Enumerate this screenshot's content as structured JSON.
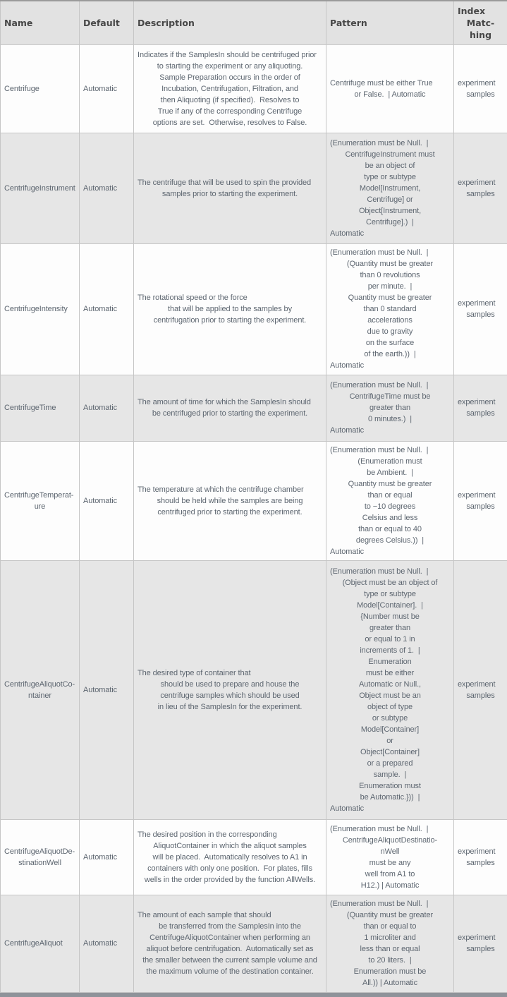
{
  "colors": {
    "header_bg": "#e2e2e2",
    "alt_row_bg": "#e6e6e6",
    "row_bg": "#fdfdfd",
    "grid_border": "#c6c6c6",
    "outer_border": "#9a9a9a",
    "body_text": "#5d6670",
    "header_text": "#474747",
    "bottom_bar": "#8f939a"
  },
  "table": {
    "columns": [
      {
        "key": "name",
        "label_lines": [
          "Name"
        ]
      },
      {
        "key": "default",
        "label_lines": [
          "Default"
        ]
      },
      {
        "key": "description",
        "label_lines": [
          "Description"
        ]
      },
      {
        "key": "pattern",
        "label_lines": [
          "Pattern"
        ]
      },
      {
        "key": "index_matching",
        "label_lines": [
          "Index",
          "Matc-",
          "hing"
        ]
      }
    ],
    "rows": [
      {
        "name": [
          "Centrifuge"
        ],
        "default": [
          "Automatic"
        ],
        "description": [
          "Indicates if the SamplesIn should be centrifuged prior",
          "to starting the experiment or any aliquoting.",
          "Sample Preparation occurs in the order of",
          "Incubation, Centrifugation, Filtration, and",
          "then Aliquoting (if specified).  Resolves to",
          "True if any of the corresponding Centrifuge",
          "options are set.  Otherwise, resolves to False."
        ],
        "pattern": [
          "Centrifuge must be either True",
          "or False.  | Automatic"
        ],
        "index_matching": [
          "experiment",
          "samples"
        ]
      },
      {
        "name": [
          "CentrifugeInstrument"
        ],
        "default": [
          "Automatic"
        ],
        "description": [
          "The centrifuge that will be used to spin the provided",
          "samples prior to starting the experiment."
        ],
        "pattern": [
          "(Enumeration must be Null.  |",
          "CentrifugeInstrument must",
          "be an object of",
          "type or subtype",
          "Model[Instrument,",
          "Centrifuge] or",
          "Object[Instrument,",
          "Centrifuge].)  |",
          "Automatic"
        ],
        "index_matching": [
          "experiment",
          "samples"
        ]
      },
      {
        "name": [
          "CentrifugeIntensity"
        ],
        "default": [
          "Automatic"
        ],
        "description": [
          "The rotational speed or the force",
          "that will be applied to the samples by",
          "centrifugation prior to starting the experiment."
        ],
        "pattern": [
          "(Enumeration must be Null.  |",
          "(Quantity must be greater",
          "than 0 revolutions",
          "per minute.  |",
          "Quantity must be greater",
          "than 0 standard",
          "accelerations",
          "due to gravity",
          "on the surface",
          "of the earth.))  |",
          "Automatic"
        ],
        "index_matching": [
          "experiment",
          "samples"
        ]
      },
      {
        "name": [
          "CentrifugeTime"
        ],
        "default": [
          "Automatic"
        ],
        "description": [
          "The amount of time for which the SamplesIn should",
          "be centrifuged prior to starting the experiment."
        ],
        "pattern": [
          "(Enumeration must be Null.  |",
          "CentrifugeTime must be",
          "greater than",
          "0 minutes.)  |",
          "Automatic"
        ],
        "index_matching": [
          "experiment",
          "samples"
        ]
      },
      {
        "name": [
          "CentrifugeTemperat-",
          "ure"
        ],
        "default": [
          "Automatic"
        ],
        "description": [
          "The temperature at which the centrifuge chamber",
          "should be held while the samples are being",
          "centrifuged prior to starting the experiment."
        ],
        "pattern": [
          "(Enumeration must be Null.  |",
          "(Enumeration must",
          "be Ambient.  |",
          "Quantity must be greater",
          "than or equal",
          "to −10 degrees",
          "Celsius and less",
          "than or equal to 40",
          "degrees Celsius.))  |",
          "Automatic"
        ],
        "index_matching": [
          "experiment",
          "samples"
        ]
      },
      {
        "name": [
          "CentrifugeAliquotCo-",
          "ntainer"
        ],
        "default": [
          "Automatic"
        ],
        "description": [
          "The desired type of container that",
          "should be used to prepare and house the",
          "centrifuge samples which should be used",
          "in lieu of the SamplesIn for the experiment."
        ],
        "pattern": [
          "(Enumeration must be Null.  |",
          "(Object must be an object of",
          "type or subtype",
          "Model[Container].  |",
          "{Number must be",
          "greater than",
          "or equal to 1 in",
          "increments of 1.  |",
          "Enumeration",
          "must be either",
          "Automatic or Null.,",
          "Object must be an",
          "object of type",
          "or subtype",
          "Model[Container]",
          "or",
          "Object[Container]",
          "or a prepared",
          "sample.  |",
          "Enumeration must",
          "be Automatic.}))  |",
          "Automatic"
        ],
        "index_matching": [
          "experiment",
          "samples"
        ]
      },
      {
        "name": [
          "CentrifugeAliquotDe-",
          "stinationWell"
        ],
        "default": [
          "Automatic"
        ],
        "description": [
          "The desired position in the corresponding",
          "AliquotContainer in which the aliquot samples",
          "will be placed.  Automatically resolves to A1 in",
          "containers with only one position.  For plates, fills",
          "wells in the order provided by the function AllWells."
        ],
        "pattern": [
          "(Enumeration must be Null.  |",
          "CentrifugeAliquotDestinatio-",
          "nWell",
          "must be any",
          "well from A1 to",
          "H12.) | Automatic"
        ],
        "index_matching": [
          "experiment",
          "samples"
        ]
      },
      {
        "name": [
          "CentrifugeAliquot"
        ],
        "default": [
          "Automatic"
        ],
        "description": [
          "The amount of each sample that should",
          "be transferred from the SamplesIn into the",
          "CentrifugeAliquotContainer when performing an",
          "aliquot before centrifugation.  Automatically set as",
          "the smaller between the current sample volume and",
          "the maximum volume of the destination container."
        ],
        "pattern": [
          "(Enumeration must be Null.  |",
          "(Quantity must be greater",
          "than or equal to",
          "1 microliter and",
          "less than or equal",
          "to 20 liters.  |",
          "Enumeration must be",
          "All.)) | Automatic"
        ],
        "index_matching": [
          "experiment",
          "samples"
        ]
      }
    ]
  }
}
